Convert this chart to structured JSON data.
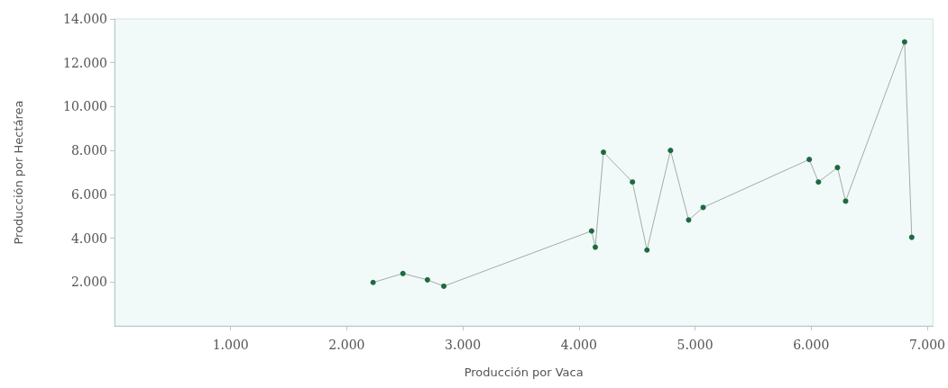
{
  "chart_data": {
    "type": "line",
    "xlabel": "Producción por Vaca",
    "ylabel": "Producción por Hectárea",
    "x": [
      2227,
      2484,
      2695,
      2836,
      4109,
      4141,
      4211,
      4461,
      4586,
      4789,
      4945,
      5070,
      5984,
      6063,
      6227,
      6297,
      6805,
      6867
    ],
    "series": [
      {
        "color": "#1d6a40",
        "values": [
          1980,
          2390,
          2100,
          1810,
          4330,
          3590,
          7920,
          6560,
          3460,
          8000,
          4830,
          5400,
          7590,
          6560,
          7220,
          5690,
          12950,
          4040
        ]
      }
    ],
    "marker": "circle",
    "xlim": [
      0,
      7050
    ],
    "xticks": [
      {
        "value": 1000,
        "label": "1.000"
      },
      {
        "value": 2000,
        "label": "2.000"
      },
      {
        "value": 3000,
        "label": "3.000"
      },
      {
        "value": 4000,
        "label": "4.000"
      },
      {
        "value": 5000,
        "label": "5.000"
      },
      {
        "value": 6000,
        "label": "6.000"
      },
      {
        "value": 7000,
        "label": "7.000"
      }
    ],
    "ylim": [
      0,
      14000
    ],
    "yticks": [
      {
        "value": 2000,
        "label": "2.000"
      },
      {
        "value": 4000,
        "label": "4.000"
      },
      {
        "value": 6000,
        "label": "6.000"
      },
      {
        "value": 8000,
        "label": "8.000"
      },
      {
        "value": 10000,
        "label": "10.000"
      },
      {
        "value": 12000,
        "label": "12.000"
      },
      {
        "value": 14000,
        "label": "14.000"
      }
    ],
    "grid": false
  }
}
